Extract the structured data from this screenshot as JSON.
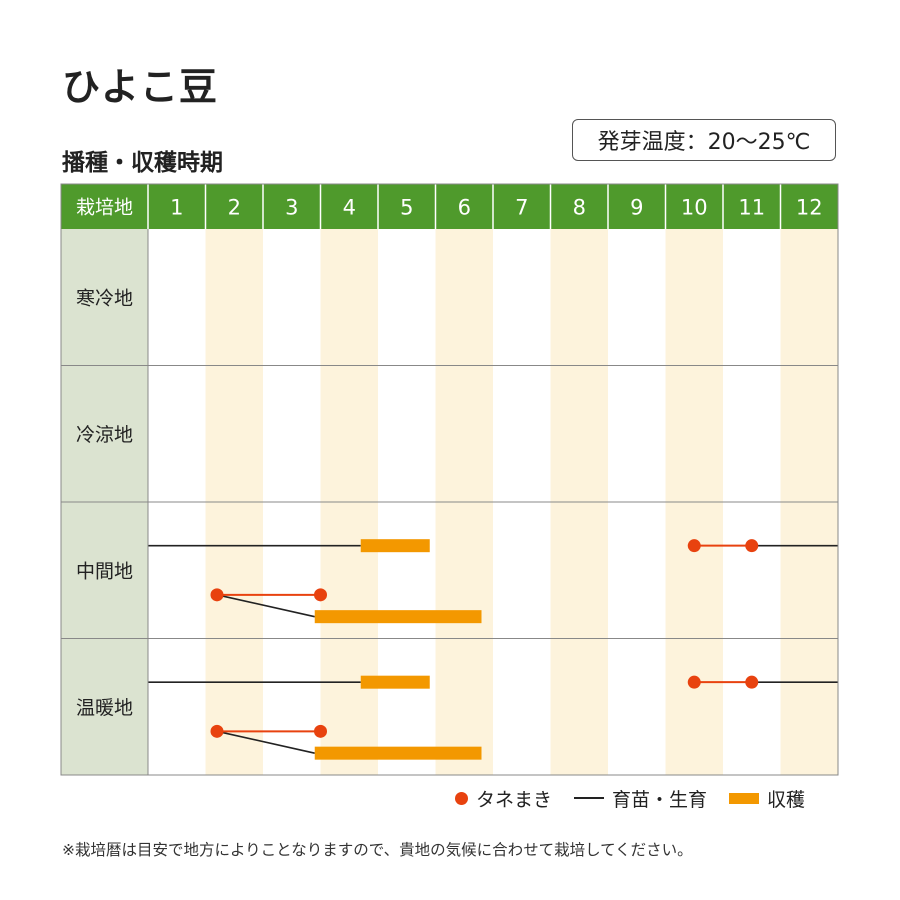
{
  "title": "ひよこ豆",
  "subtitle": "播種・収穫時期",
  "germination": "発芽温度：20～25℃",
  "note": "※栽培暦は目安で地方によりことなりますので、貴地の気候に合わせて栽培してください。",
  "colors": {
    "header": "#4f9a2c",
    "region_cell": "#dbe3d0",
    "stripe": "#fdf3dc",
    "sowing": "#e8420f",
    "growth": "#222222",
    "harvest": "#f39800"
  },
  "legend": {
    "sowing": "タネまき",
    "growth": "育苗・生育",
    "harvest": "収穫"
  },
  "chart_data": {
    "type": "table",
    "header_label": "栽培地",
    "months": [
      "1",
      "2",
      "3",
      "4",
      "5",
      "6",
      "7",
      "8",
      "9",
      "10",
      "11",
      "12"
    ],
    "regions": [
      {
        "name": "寒冷地",
        "rows": []
      },
      {
        "name": "冷涼地",
        "rows": []
      },
      {
        "name": "中間地",
        "rows": [
          {
            "sowing": [
              10.5,
              11.5
            ],
            "growth": [
              [
                1,
                4.7
              ],
              [
                11.5,
                13
              ]
            ],
            "harvest": [
              [
                4.7,
                5.9
              ]
            ]
          },
          {
            "sowing": [
              2.2,
              4.0
            ],
            "growth_diagonal": [
              2.2,
              3.9
            ],
            "harvest": [
              [
                3.9,
                6.8
              ]
            ]
          }
        ]
      },
      {
        "name": "温暖地",
        "rows": [
          {
            "sowing": [
              10.5,
              11.5
            ],
            "growth": [
              [
                1,
                4.7
              ],
              [
                11.5,
                13
              ]
            ],
            "harvest": [
              [
                4.7,
                5.9
              ]
            ]
          },
          {
            "sowing": [
              2.2,
              4.0
            ],
            "growth_diagonal": [
              2.2,
              3.9
            ],
            "harvest": [
              [
                3.9,
                6.8
              ]
            ]
          }
        ]
      }
    ]
  }
}
